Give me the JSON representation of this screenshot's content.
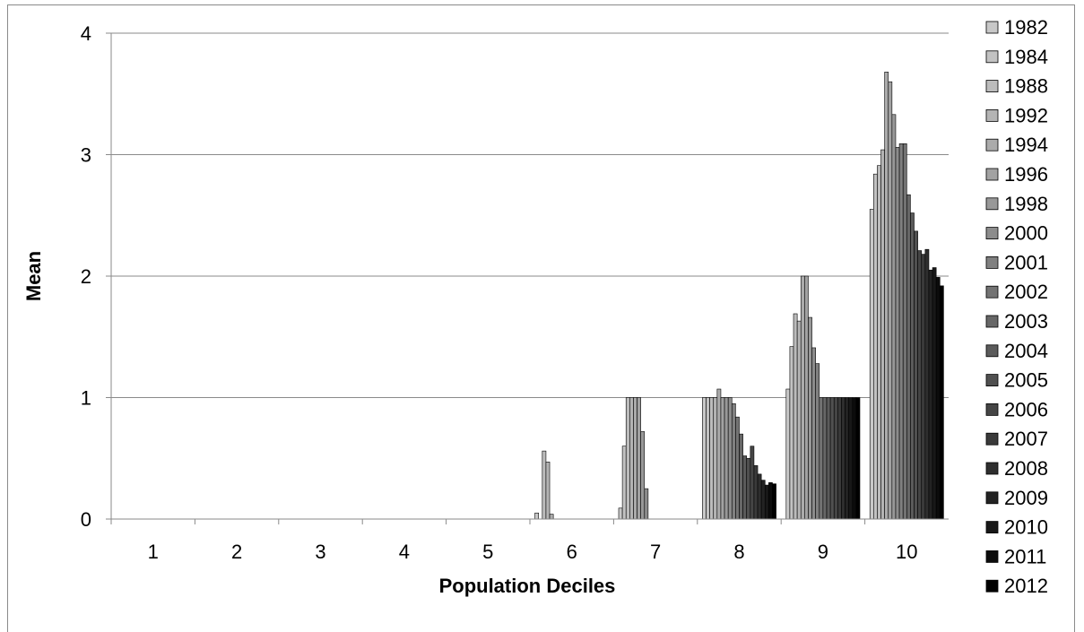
{
  "chart_data": {
    "type": "bar",
    "title": "",
    "xlabel": "Population Deciles",
    "ylabel": "Mean",
    "ylim": [
      0,
      4
    ],
    "yticks": [
      "0",
      "1",
      "2",
      "3",
      "4"
    ],
    "categories": [
      "1",
      "2",
      "3",
      "4",
      "5",
      "6",
      "7",
      "8",
      "9",
      "10"
    ],
    "grid": true,
    "legend_position": "right",
    "series": [
      {
        "name": "1982",
        "color": "#c8c8c8",
        "values": [
          0,
          0,
          0,
          0,
          0,
          0.05,
          0.09,
          1.0,
          1.07,
          2.55
        ]
      },
      {
        "name": "1984",
        "color": "#c2c2c2",
        "values": [
          0,
          0,
          0,
          0,
          0,
          0.0,
          0.6,
          1.0,
          1.42,
          2.84
        ]
      },
      {
        "name": "1988",
        "color": "#bcbcbc",
        "values": [
          0,
          0,
          0,
          0,
          0,
          0.56,
          1.0,
          1.0,
          1.69,
          2.91
        ]
      },
      {
        "name": "1992",
        "color": "#b4b4b4",
        "values": [
          0,
          0,
          0,
          0,
          0,
          0.47,
          1.0,
          1.0,
          1.63,
          3.04
        ]
      },
      {
        "name": "1994",
        "color": "#ababab",
        "values": [
          0,
          0,
          0,
          0,
          0,
          0.04,
          1.0,
          1.07,
          2.0,
          3.68
        ]
      },
      {
        "name": "1996",
        "color": "#a2a2a2",
        "values": [
          0,
          0,
          0,
          0,
          0,
          0.0,
          1.0,
          1.0,
          2.0,
          3.6
        ]
      },
      {
        "name": "1998",
        "color": "#989898",
        "values": [
          0,
          0,
          0,
          0,
          0,
          0.0,
          0.72,
          1.0,
          1.66,
          3.33
        ]
      },
      {
        "name": "2000",
        "color": "#8c8c8c",
        "values": [
          0,
          0,
          0,
          0,
          0,
          0.0,
          0.25,
          1.0,
          1.41,
          3.06
        ]
      },
      {
        "name": "2001",
        "color": "#808080",
        "values": [
          0,
          0,
          0,
          0,
          0,
          0.0,
          0.0,
          0.95,
          1.28,
          3.09
        ]
      },
      {
        "name": "2002",
        "color": "#737373",
        "values": [
          0,
          0,
          0,
          0,
          0,
          0.0,
          0.0,
          0.84,
          1.0,
          3.09
        ]
      },
      {
        "name": "2003",
        "color": "#676767",
        "values": [
          0,
          0,
          0,
          0,
          0,
          0.0,
          0.0,
          0.7,
          1.0,
          2.67
        ]
      },
      {
        "name": "2004",
        "color": "#5b5b5b",
        "values": [
          0,
          0,
          0,
          0,
          0,
          0.0,
          0.0,
          0.52,
          1.0,
          2.52
        ]
      },
      {
        "name": "2005",
        "color": "#505050",
        "values": [
          0,
          0,
          0,
          0,
          0,
          0.0,
          0.0,
          0.5,
          1.0,
          2.37
        ]
      },
      {
        "name": "2006",
        "color": "#454545",
        "values": [
          0,
          0,
          0,
          0,
          0,
          0.0,
          0.0,
          0.6,
          1.0,
          2.21
        ]
      },
      {
        "name": "2007",
        "color": "#3a3a3a",
        "values": [
          0,
          0,
          0,
          0,
          0,
          0.0,
          0.0,
          0.44,
          1.0,
          2.18
        ]
      },
      {
        "name": "2008",
        "color": "#2e2e2e",
        "values": [
          0,
          0,
          0,
          0,
          0,
          0.0,
          0.0,
          0.37,
          1.0,
          2.22
        ]
      },
      {
        "name": "2009",
        "color": "#232323",
        "values": [
          0,
          0,
          0,
          0,
          0,
          0.0,
          0.0,
          0.32,
          1.0,
          2.05
        ]
      },
      {
        "name": "2010",
        "color": "#181818",
        "values": [
          0,
          0,
          0,
          0,
          0,
          0.0,
          0.0,
          0.28,
          1.0,
          2.07
        ]
      },
      {
        "name": "2011",
        "color": "#0c0c0c",
        "values": [
          0,
          0,
          0,
          0,
          0,
          0.0,
          0.0,
          0.3,
          1.0,
          1.99
        ]
      },
      {
        "name": "2012",
        "color": "#000000",
        "values": [
          0,
          0,
          0,
          0,
          0,
          0.0,
          0.0,
          0.29,
          1.0,
          1.92
        ]
      }
    ]
  }
}
